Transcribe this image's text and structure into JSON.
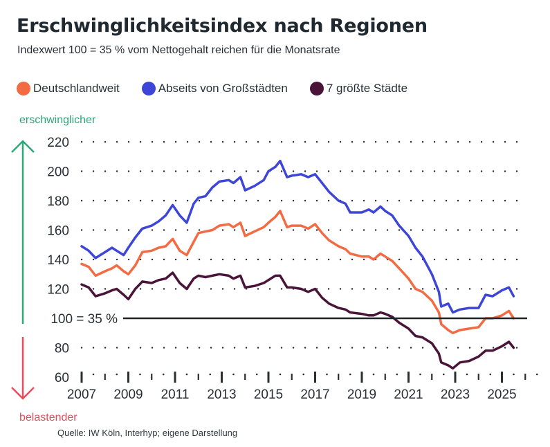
{
  "title": "Erschwinglichkeitsindex nach Regionen",
  "subtitle": "Indexwert 100 = 35 % vom Nettogehalt reichen für die Monatsrate",
  "direction_labels": {
    "up": "erschwinglicher",
    "down": "belastender",
    "up_color": "#2aa876",
    "down_color": "#e84c5c"
  },
  "source": "Quelle: IW Köln, Interhyp; eigene Darstellung",
  "chart_data": {
    "type": "line",
    "title": "Erschwinglichkeitsindex nach Regionen",
    "subtitle": "Indexwert 100 = 35 % vom Nettogehalt reichen für die Monatsrate",
    "xlabel": "",
    "ylabel": "",
    "xlim": [
      2007,
      2026
    ],
    "ylim": [
      60,
      220
    ],
    "x_ticks": [
      2007,
      2009,
      2011,
      2013,
      2015,
      2017,
      2019,
      2021,
      2023,
      2025
    ],
    "x_tick_labels": [
      "2007",
      "2009",
      "2011",
      "2013",
      "2015",
      "2017",
      "2019",
      "2021",
      "2023",
      "2025"
    ],
    "y_ticks": [
      60,
      80,
      100,
      120,
      140,
      160,
      180,
      200,
      220
    ],
    "y_tick_labels": [
      "60",
      "80",
      "100 = 35 %",
      "120",
      "140",
      "160",
      "180",
      "200",
      "220"
    ],
    "reference_line": {
      "value": 100,
      "label": "100 = 35 %"
    },
    "grid": "dotted horizontal",
    "legend_position": "top",
    "series": [
      {
        "name": "Deutschlandweit",
        "color": "#f26b43",
        "points": [
          [
            2007.0,
            137
          ],
          [
            2007.3,
            135
          ],
          [
            2007.6,
            129
          ],
          [
            2008.0,
            132
          ],
          [
            2008.3,
            134
          ],
          [
            2008.5,
            136
          ],
          [
            2008.8,
            132
          ],
          [
            2009.0,
            130
          ],
          [
            2009.3,
            136
          ],
          [
            2009.6,
            145
          ],
          [
            2010.0,
            146
          ],
          [
            2010.3,
            148
          ],
          [
            2010.6,
            149
          ],
          [
            2010.9,
            154
          ],
          [
            2011.2,
            146
          ],
          [
            2011.5,
            143
          ],
          [
            2011.8,
            152
          ],
          [
            2012.0,
            158
          ],
          [
            2012.3,
            159
          ],
          [
            2012.6,
            160
          ],
          [
            2012.9,
            163
          ],
          [
            2013.3,
            164
          ],
          [
            2013.5,
            162
          ],
          [
            2013.8,
            165
          ],
          [
            2014.0,
            156
          ],
          [
            2014.4,
            159
          ],
          [
            2014.8,
            162
          ],
          [
            2015.0,
            165
          ],
          [
            2015.3,
            169
          ],
          [
            2015.5,
            173
          ],
          [
            2015.8,
            162
          ],
          [
            2016.0,
            163
          ],
          [
            2016.4,
            163
          ],
          [
            2016.7,
            161
          ],
          [
            2017.0,
            164
          ],
          [
            2017.3,
            158
          ],
          [
            2017.6,
            153
          ],
          [
            2018.0,
            149
          ],
          [
            2018.3,
            147
          ],
          [
            2018.5,
            144
          ],
          [
            2019.0,
            142
          ],
          [
            2019.3,
            142
          ],
          [
            2019.5,
            140
          ],
          [
            2019.8,
            144
          ],
          [
            2020.0,
            142
          ],
          [
            2020.3,
            139
          ],
          [
            2020.6,
            134
          ],
          [
            2021.0,
            127
          ],
          [
            2021.3,
            120
          ],
          [
            2021.6,
            118
          ],
          [
            2022.0,
            112
          ],
          [
            2022.3,
            104
          ],
          [
            2022.4,
            96
          ],
          [
            2022.7,
            92
          ],
          [
            2022.9,
            90
          ],
          [
            2023.2,
            92
          ],
          [
            2023.6,
            93
          ],
          [
            2024.0,
            94
          ],
          [
            2024.3,
            100
          ],
          [
            2024.6,
            100
          ],
          [
            2025.0,
            102
          ],
          [
            2025.3,
            105
          ],
          [
            2025.5,
            100
          ]
        ]
      },
      {
        "name": "Abseits von Großstädten",
        "color": "#3d46d6",
        "points": [
          [
            2007.0,
            149
          ],
          [
            2007.3,
            146
          ],
          [
            2007.6,
            141
          ],
          [
            2008.0,
            145
          ],
          [
            2008.3,
            148
          ],
          [
            2008.5,
            146
          ],
          [
            2008.8,
            143
          ],
          [
            2009.0,
            148
          ],
          [
            2009.3,
            155
          ],
          [
            2009.6,
            161
          ],
          [
            2010.0,
            163
          ],
          [
            2010.3,
            166
          ],
          [
            2010.6,
            170
          ],
          [
            2010.9,
            177
          ],
          [
            2011.2,
            170
          ],
          [
            2011.5,
            165
          ],
          [
            2011.8,
            178
          ],
          [
            2012.0,
            182
          ],
          [
            2012.3,
            183
          ],
          [
            2012.6,
            189
          ],
          [
            2012.9,
            193
          ],
          [
            2013.3,
            194
          ],
          [
            2013.5,
            192
          ],
          [
            2013.8,
            196
          ],
          [
            2014.0,
            187
          ],
          [
            2014.4,
            190
          ],
          [
            2014.8,
            194
          ],
          [
            2015.0,
            200
          ],
          [
            2015.3,
            203
          ],
          [
            2015.5,
            207
          ],
          [
            2015.8,
            196
          ],
          [
            2016.0,
            197
          ],
          [
            2016.4,
            198
          ],
          [
            2016.7,
            196
          ],
          [
            2017.0,
            198
          ],
          [
            2017.3,
            192
          ],
          [
            2017.6,
            186
          ],
          [
            2018.0,
            180
          ],
          [
            2018.3,
            178
          ],
          [
            2018.5,
            172
          ],
          [
            2019.0,
            172
          ],
          [
            2019.3,
            174
          ],
          [
            2019.5,
            172
          ],
          [
            2019.8,
            176
          ],
          [
            2020.0,
            173
          ],
          [
            2020.3,
            170
          ],
          [
            2020.6,
            163
          ],
          [
            2021.0,
            156
          ],
          [
            2021.3,
            148
          ],
          [
            2021.6,
            142
          ],
          [
            2022.0,
            130
          ],
          [
            2022.3,
            118
          ],
          [
            2022.4,
            108
          ],
          [
            2022.7,
            110
          ],
          [
            2022.9,
            104
          ],
          [
            2023.2,
            106
          ],
          [
            2023.6,
            107
          ],
          [
            2024.0,
            107
          ],
          [
            2024.3,
            116
          ],
          [
            2024.6,
            115
          ],
          [
            2025.0,
            119
          ],
          [
            2025.3,
            121
          ],
          [
            2025.5,
            115
          ]
        ]
      },
      {
        "name": "7 größte Städte",
        "color": "#4a1338",
        "points": [
          [
            2007.0,
            123
          ],
          [
            2007.3,
            121
          ],
          [
            2007.6,
            115
          ],
          [
            2008.0,
            117
          ],
          [
            2008.3,
            119
          ],
          [
            2008.5,
            120
          ],
          [
            2008.8,
            116
          ],
          [
            2009.0,
            113
          ],
          [
            2009.3,
            120
          ],
          [
            2009.6,
            125
          ],
          [
            2010.0,
            124
          ],
          [
            2010.3,
            126
          ],
          [
            2010.6,
            127
          ],
          [
            2010.9,
            131
          ],
          [
            2011.2,
            124
          ],
          [
            2011.5,
            120
          ],
          [
            2011.8,
            127
          ],
          [
            2012.0,
            129
          ],
          [
            2012.3,
            128
          ],
          [
            2012.6,
            129
          ],
          [
            2012.9,
            130
          ],
          [
            2013.3,
            129
          ],
          [
            2013.5,
            127
          ],
          [
            2013.8,
            129
          ],
          [
            2014.0,
            121
          ],
          [
            2014.4,
            122
          ],
          [
            2014.8,
            124
          ],
          [
            2015.0,
            126
          ],
          [
            2015.3,
            129
          ],
          [
            2015.5,
            129
          ],
          [
            2015.8,
            121
          ],
          [
            2016.0,
            121
          ],
          [
            2016.4,
            120
          ],
          [
            2016.7,
            118
          ],
          [
            2017.0,
            120
          ],
          [
            2017.3,
            114
          ],
          [
            2017.6,
            110
          ],
          [
            2018.0,
            107
          ],
          [
            2018.3,
            106
          ],
          [
            2018.5,
            104
          ],
          [
            2019.0,
            103
          ],
          [
            2019.3,
            102
          ],
          [
            2019.5,
            102
          ],
          [
            2019.8,
            104
          ],
          [
            2020.0,
            103
          ],
          [
            2020.3,
            101
          ],
          [
            2020.6,
            97
          ],
          [
            2021.0,
            93
          ],
          [
            2021.3,
            88
          ],
          [
            2021.6,
            87
          ],
          [
            2022.0,
            83
          ],
          [
            2022.3,
            76
          ],
          [
            2022.4,
            70
          ],
          [
            2022.7,
            68
          ],
          [
            2022.9,
            66
          ],
          [
            2023.2,
            70
          ],
          [
            2023.6,
            71
          ],
          [
            2024.0,
            74
          ],
          [
            2024.3,
            78
          ],
          [
            2024.6,
            78
          ],
          [
            2025.0,
            81
          ],
          [
            2025.3,
            84
          ],
          [
            2025.5,
            80
          ]
        ]
      }
    ]
  }
}
